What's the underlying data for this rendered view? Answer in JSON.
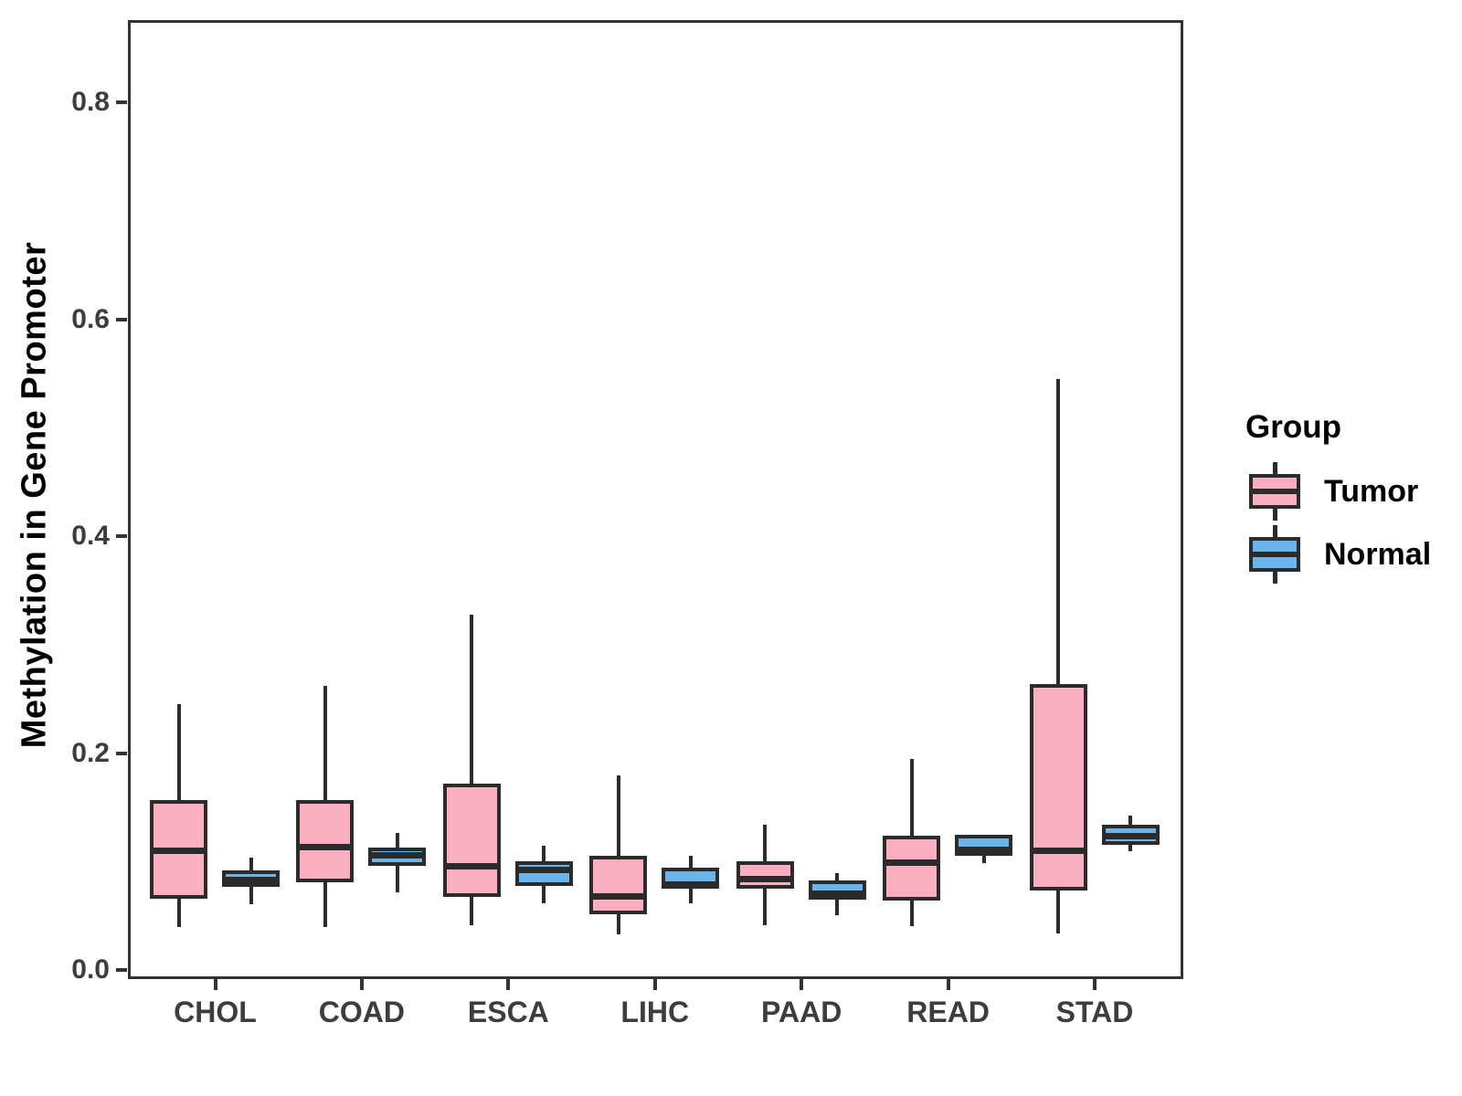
{
  "y_axis": {
    "label": "Methylation in Gene Promoter",
    "tick_labels": [
      "0.0",
      "0.2",
      "0.4",
      "0.6",
      "0.8"
    ]
  },
  "x_axis": {
    "tick_labels": [
      "CHOL",
      "COAD",
      "ESCA",
      "LIHC",
      "PAAD",
      "READ",
      "STAD"
    ]
  },
  "legend": {
    "title": "Group",
    "entries": [
      {
        "label": "Tumor",
        "color": "#FAAEBE"
      },
      {
        "label": "Normal",
        "color": "#6AB4EB"
      }
    ]
  },
  "colors": {
    "outline": "#2B2B2B",
    "panel_border": "#333333",
    "tick_label": "#3D3D3D",
    "tumor_fill": "#FAAEBE",
    "normal_fill": "#6AB4EB"
  },
  "chart_data": {
    "type": "boxplot",
    "title": "",
    "xlabel": "",
    "ylabel": "Methylation in Gene Promoter",
    "categories": [
      "CHOL",
      "COAD",
      "ESCA",
      "LIHC",
      "PAAD",
      "READ",
      "STAD"
    ],
    "ylim": [
      -0.008,
      0.876
    ],
    "yticks": [
      0.0,
      0.2,
      0.4,
      0.6,
      0.8
    ],
    "grid": false,
    "legend_position": "right",
    "series": [
      {
        "name": "Tumor",
        "fill": "#FAAEBE",
        "boxes": [
          {
            "category": "CHOL",
            "whisker_low": 0.04,
            "q1": 0.066,
            "median": 0.11,
            "q3": 0.157,
            "whisker_high": 0.245
          },
          {
            "category": "COAD",
            "whisker_low": 0.04,
            "q1": 0.081,
            "median": 0.114,
            "q3": 0.157,
            "whisker_high": 0.262
          },
          {
            "category": "ESCA",
            "whisker_low": 0.042,
            "q1": 0.068,
            "median": 0.096,
            "q3": 0.172,
            "whisker_high": 0.328
          },
          {
            "category": "LIHC",
            "whisker_low": 0.033,
            "q1": 0.052,
            "median": 0.068,
            "q3": 0.106,
            "whisker_high": 0.18
          },
          {
            "category": "PAAD",
            "whisker_low": 0.042,
            "q1": 0.075,
            "median": 0.084,
            "q3": 0.101,
            "whisker_high": 0.134
          },
          {
            "category": "READ",
            "whisker_low": 0.041,
            "q1": 0.064,
            "median": 0.099,
            "q3": 0.124,
            "whisker_high": 0.195
          },
          {
            "category": "STAD",
            "whisker_low": 0.034,
            "q1": 0.074,
            "median": 0.11,
            "q3": 0.264,
            "whisker_high": 0.545
          }
        ]
      },
      {
        "name": "Normal",
        "fill": "#6AB4EB",
        "boxes": [
          {
            "category": "CHOL",
            "whisker_low": 0.061,
            "q1": 0.077,
            "median": 0.083,
            "q3": 0.092,
            "whisker_high": 0.104
          },
          {
            "category": "COAD",
            "whisker_low": 0.072,
            "q1": 0.096,
            "median": 0.106,
            "q3": 0.113,
            "whisker_high": 0.127
          },
          {
            "category": "ESCA",
            "whisker_low": 0.062,
            "q1": 0.078,
            "median": 0.093,
            "q3": 0.101,
            "whisker_high": 0.115
          },
          {
            "category": "LIHC",
            "whisker_low": 0.062,
            "q1": 0.075,
            "median": 0.079,
            "q3": 0.095,
            "whisker_high": 0.106
          },
          {
            "category": "PAAD",
            "whisker_low": 0.051,
            "q1": 0.065,
            "median": 0.071,
            "q3": 0.083,
            "whisker_high": 0.09
          },
          {
            "category": "READ",
            "whisker_low": 0.099,
            "q1": 0.106,
            "median": 0.111,
            "q3": 0.125,
            "whisker_high": 0.125
          },
          {
            "category": "STAD",
            "whisker_low": 0.11,
            "q1": 0.116,
            "median": 0.124,
            "q3": 0.134,
            "whisker_high": 0.143
          }
        ]
      }
    ]
  }
}
